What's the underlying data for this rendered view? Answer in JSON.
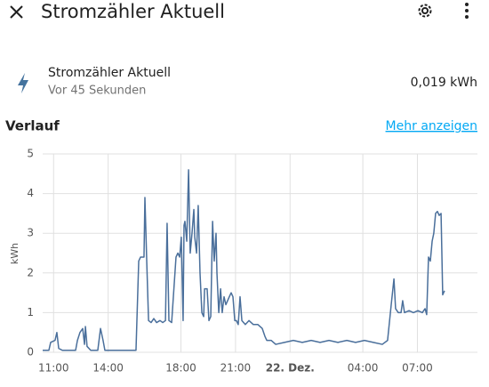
{
  "header": {
    "title": "Stromzähler Aktuell"
  },
  "entity": {
    "name": "Stromzähler Aktuell",
    "last_changed": "Vor 45 Sekunden",
    "state": "0,019 kWh"
  },
  "section": {
    "title": "Verlauf",
    "link": "Mehr anzeigen"
  },
  "chart_data": {
    "type": "line",
    "y_label": "kWh",
    "color": "#4a6f9b",
    "grid": true,
    "xlim": [
      10.4,
      34.3
    ],
    "xticks": [
      {
        "value": 11,
        "label": "11:00"
      },
      {
        "value": 14,
        "label": "14:00"
      },
      {
        "value": 18,
        "label": "18:00"
      },
      {
        "value": 21,
        "label": "21:00"
      },
      {
        "value": 24,
        "label": "22. Dez."
      },
      {
        "value": 28,
        "label": "04:00"
      },
      {
        "value": 31,
        "label": "07:00"
      }
    ],
    "ylim": [
      0,
      5
    ],
    "yticks": [
      0,
      1,
      2,
      3,
      4,
      5
    ],
    "x": [
      10.4,
      10.74,
      10.84,
      11.08,
      11.18,
      11.28,
      11.48,
      12.21,
      12.31,
      12.45,
      12.6,
      12.7,
      12.75,
      12.84,
      13.04,
      13.43,
      13.58,
      13.72,
      13.82,
      15.53,
      15.68,
      15.78,
      15.97,
      16.02,
      16.12,
      16.22,
      16.36,
      16.51,
      16.66,
      16.85,
      17.0,
      17.15,
      17.24,
      17.34,
      17.49,
      17.73,
      17.83,
      17.93,
      18.02,
      18.12,
      18.17,
      18.22,
      18.32,
      18.42,
      18.51,
      18.61,
      18.71,
      18.76,
      18.86,
      18.95,
      19.05,
      19.15,
      19.25,
      19.3,
      19.44,
      19.54,
      19.64,
      19.74,
      19.83,
      19.93,
      19.98,
      20.08,
      20.18,
      20.27,
      20.37,
      20.47,
      20.66,
      20.76,
      20.86,
      20.96,
      21.05,
      21.15,
      21.25,
      21.35,
      21.54,
      21.74,
      21.98,
      22.23,
      22.47,
      22.62,
      22.72,
      22.96,
      23.21,
      23.69,
      24.18,
      24.67,
      25.16,
      25.65,
      26.14,
      26.63,
      27.12,
      27.6,
      28.09,
      28.58,
      29.07,
      29.36,
      29.56,
      29.71,
      29.8,
      29.95,
      30.1,
      30.19,
      30.29,
      30.54,
      30.78,
      31.03,
      31.27,
      31.42,
      31.51,
      31.61,
      31.71,
      31.81,
      31.9,
      32.0,
      32.1,
      32.2,
      32.3,
      32.39,
      32.49
    ],
    "values": [
      0.05,
      0.05,
      0.25,
      0.3,
      0.5,
      0.1,
      0.05,
      0.05,
      0.3,
      0.5,
      0.6,
      0.2,
      0.65,
      0.15,
      0.05,
      0.05,
      0.6,
      0.3,
      0.05,
      0.05,
      2.3,
      2.4,
      2.4,
      3.9,
      2.3,
      0.8,
      0.75,
      0.85,
      0.75,
      0.8,
      0.75,
      0.8,
      3.25,
      0.8,
      0.75,
      2.4,
      2.5,
      2.4,
      2.9,
      0.8,
      3.2,
      3.3,
      2.8,
      4.6,
      2.5,
      3.0,
      3.6,
      2.9,
      2.5,
      3.7,
      2.0,
      1.0,
      0.9,
      1.6,
      1.6,
      0.8,
      0.9,
      3.3,
      2.3,
      3.0,
      2.0,
      1.0,
      1.6,
      1.0,
      1.4,
      1.2,
      1.4,
      1.5,
      1.4,
      0.8,
      0.8,
      0.7,
      1.4,
      0.8,
      0.7,
      0.8,
      0.7,
      0.7,
      0.6,
      0.4,
      0.3,
      0.3,
      0.2,
      0.25,
      0.3,
      0.25,
      0.3,
      0.25,
      0.3,
      0.25,
      0.3,
      0.25,
      0.3,
      0.25,
      0.2,
      0.3,
      1.2,
      1.85,
      1.1,
      1.0,
      1.0,
      1.3,
      1.0,
      1.05,
      1.0,
      1.05,
      1.0,
      1.1,
      0.95,
      2.4,
      2.3,
      2.8,
      3.0,
      3.5,
      3.55,
      3.45,
      3.5,
      1.45,
      1.55
    ]
  }
}
